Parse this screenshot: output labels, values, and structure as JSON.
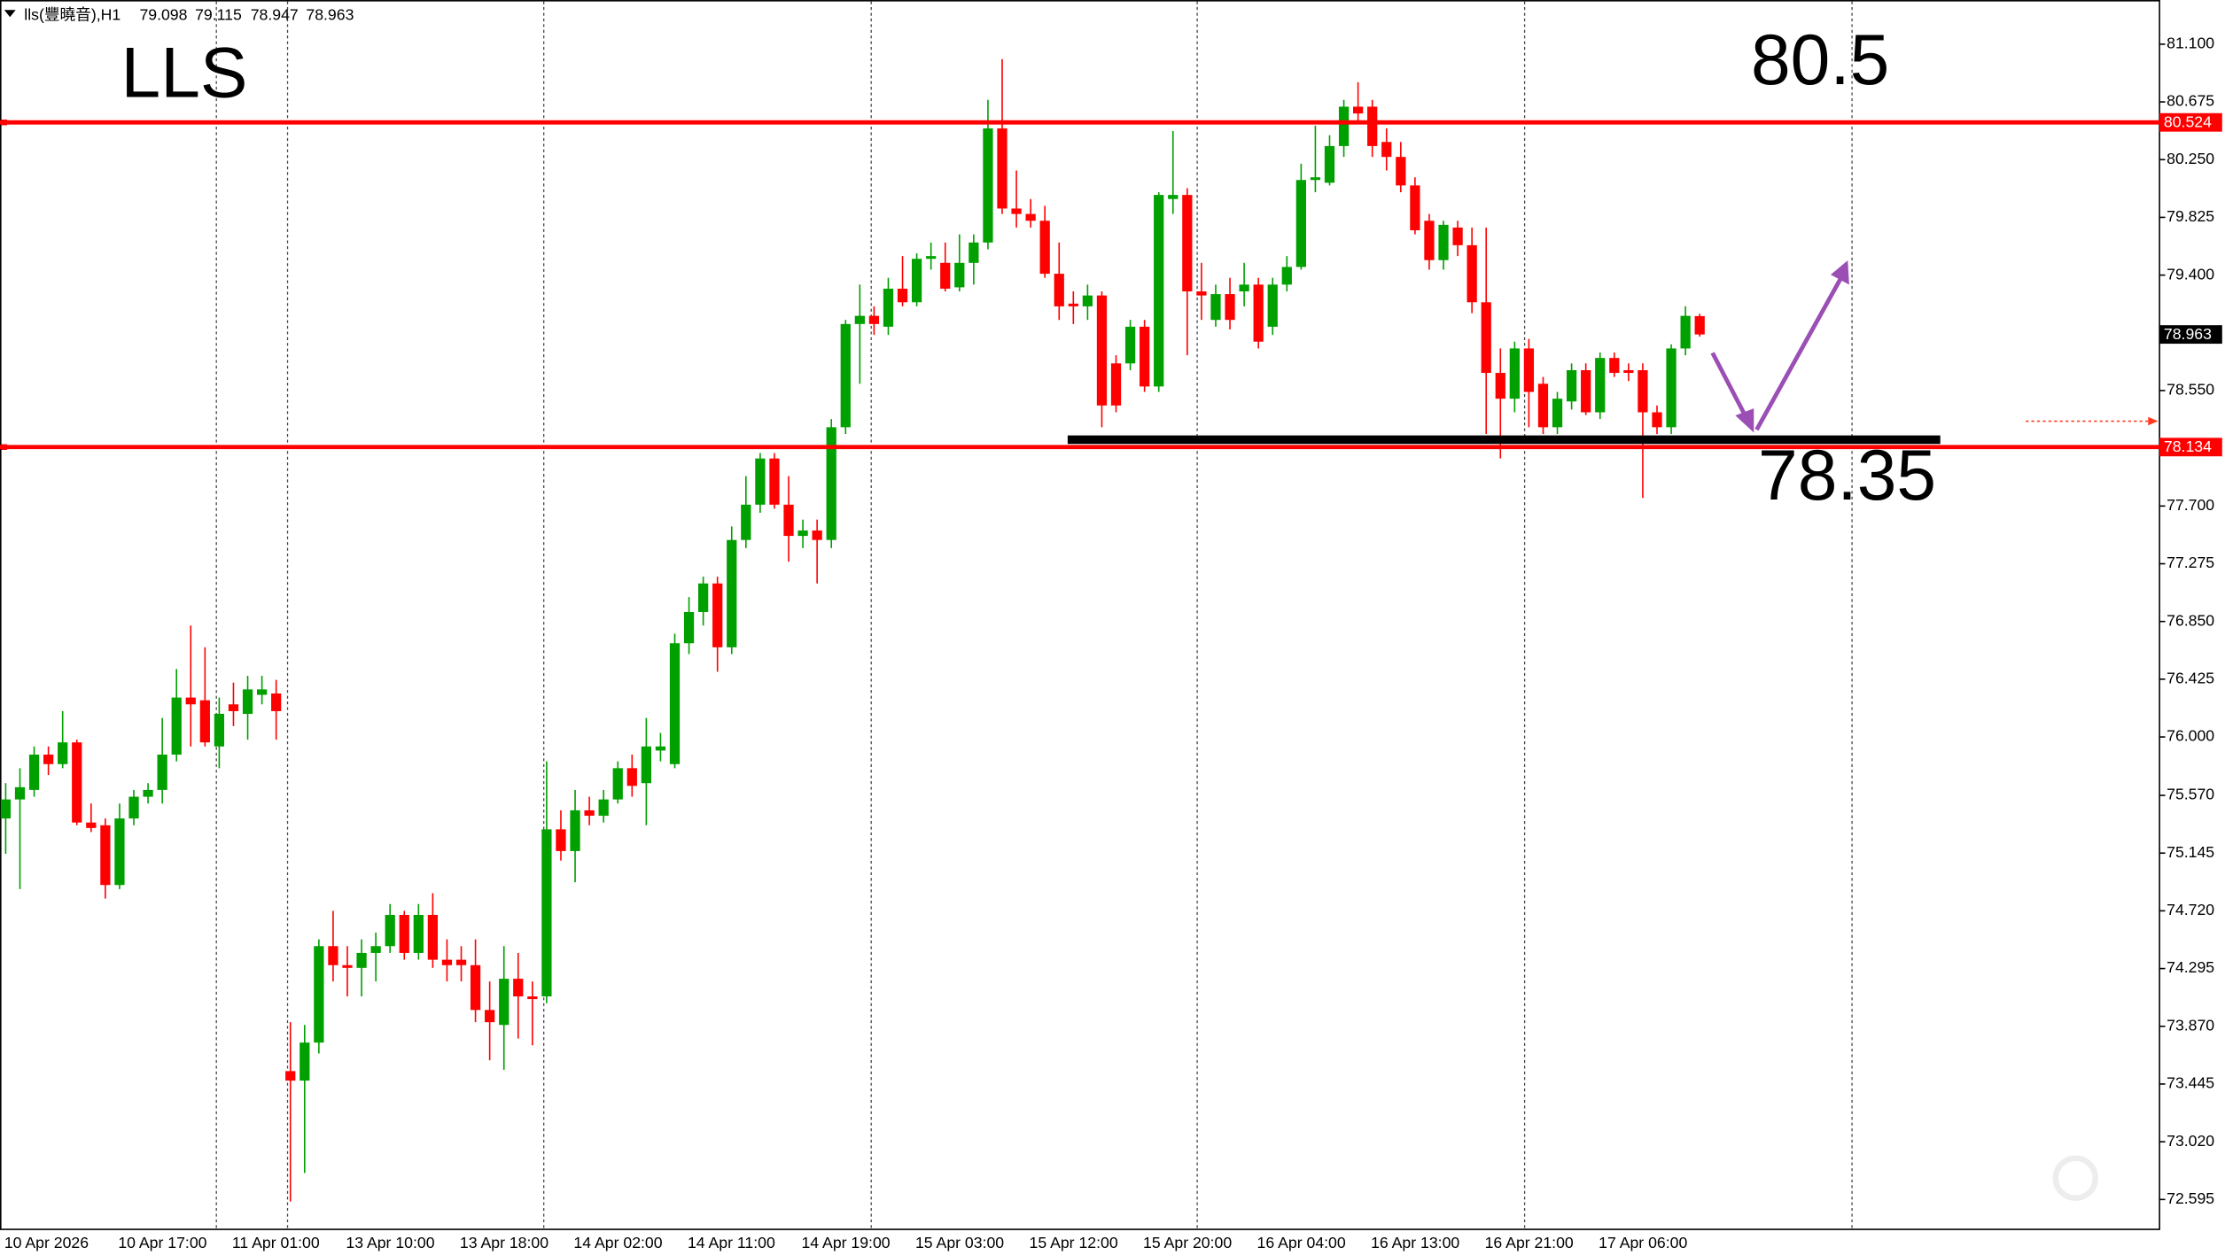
{
  "chart_data": {
    "type": "candlestick",
    "symbol": "lls(豐曉音),H1",
    "annotations": [
      "LLS",
      "80.5",
      "78.35"
    ],
    "up_color": "#00a000",
    "down_color": "#ff0000",
    "grid": false,
    "ylim": [
      72.375,
      81.425
    ],
    "yticks": [
      {
        "value": 81.1,
        "label": "81.100"
      },
      {
        "value": 80.675,
        "label": "80.675"
      },
      {
        "value": 80.25,
        "label": "80.250"
      },
      {
        "value": 79.825,
        "label": "79.825"
      },
      {
        "value": 79.4,
        "label": "79.400"
      },
      {
        "value": 78.55,
        "label": "78.550"
      },
      {
        "value": 77.7,
        "label": "77.700"
      },
      {
        "value": 77.275,
        "label": "77.275"
      },
      {
        "value": 76.85,
        "label": "76.850"
      },
      {
        "value": 76.425,
        "label": "76.425"
      },
      {
        "value": 76.0,
        "label": "76.000"
      },
      {
        "value": 75.57,
        "label": "75.570"
      },
      {
        "value": 75.145,
        "label": "75.145"
      },
      {
        "value": 74.72,
        "label": "74.720"
      },
      {
        "value": 74.295,
        "label": "74.295"
      },
      {
        "value": 73.87,
        "label": "73.870"
      },
      {
        "value": 73.445,
        "label": "73.445"
      },
      {
        "value": 73.02,
        "label": "73.020"
      },
      {
        "value": 72.595,
        "label": "72.595"
      }
    ],
    "hlines": [
      {
        "value": 80.524,
        "color": "#ff0000"
      },
      {
        "value": 78.134,
        "color": "#ff0000"
      }
    ],
    "categories": [
      "10 Apr 2026",
      null,
      null,
      null,
      null,
      null,
      null,
      null,
      "10 Apr 17:00",
      null,
      null,
      null,
      null,
      null,
      null,
      null,
      "11 Apr 01:00",
      null,
      null,
      null,
      null,
      null,
      null,
      null,
      "13 Apr 10:00",
      null,
      null,
      null,
      null,
      null,
      null,
      null,
      "13 Apr 18:00",
      null,
      null,
      null,
      null,
      null,
      null,
      null,
      "14 Apr 02:00",
      null,
      null,
      null,
      null,
      null,
      null,
      null,
      "14 Apr 11:00",
      null,
      null,
      null,
      null,
      null,
      null,
      null,
      "14 Apr 19:00",
      null,
      null,
      null,
      null,
      null,
      null,
      null,
      "15 Apr 03:00",
      null,
      null,
      null,
      null,
      null,
      null,
      null,
      "15 Apr 12:00",
      null,
      null,
      null,
      null,
      null,
      null,
      null,
      "15 Apr 20:00",
      null,
      null,
      null,
      null,
      null,
      null,
      null,
      "16 Apr 04:00",
      null,
      null,
      null,
      null,
      null,
      null,
      null,
      "16 Apr 13:00",
      null,
      null,
      null,
      null,
      null,
      null,
      null,
      "16 Apr 21:00",
      null,
      null,
      null,
      null,
      null,
      null,
      null,
      "17 Apr 06:00",
      null,
      null,
      null,
      null,
      null,
      null,
      null
    ],
    "open": [
      75.4,
      75.54,
      75.61,
      75.87,
      75.8,
      75.96,
      75.37,
      75.35,
      74.91,
      75.4,
      75.56,
      75.61,
      75.87,
      76.29,
      76.27,
      75.93,
      76.24,
      76.17,
      76.31,
      76.32,
      73.54,
      73.47,
      73.75,
      74.46,
      74.32,
      74.3,
      74.41,
      74.46,
      74.69,
      74.41,
      74.69,
      74.36,
      74.36,
      74.32,
      73.99,
      73.88,
      74.22,
      74.09,
      74.09,
      75.32,
      75.16,
      75.46,
      75.42,
      75.54,
      75.77,
      75.66,
      75.9,
      75.8,
      76.69,
      76.92,
      77.13,
      76.66,
      77.45,
      77.71,
      78.05,
      77.71,
      77.48,
      77.52,
      77.45,
      78.28,
      79.04,
      79.1,
      79.02,
      79.3,
      79.2,
      79.52,
      79.49,
      79.31,
      79.49,
      79.64,
      80.48,
      79.89,
      79.85,
      79.8,
      79.41,
      79.19,
      79.17,
      79.25,
      78.75,
      78.75,
      79.02,
      78.58,
      79.96,
      79.99,
      79.28,
      79.07,
      79.26,
      79.28,
      79.33,
      79.02,
      79.33,
      79.46,
      80.1,
      80.08,
      80.35,
      80.64,
      80.64,
      80.38,
      80.27,
      80.06,
      79.8,
      79.51,
      79.75,
      79.62,
      79.2,
      78.68,
      78.49,
      78.86,
      78.6,
      78.28,
      78.47,
      78.7,
      78.39,
      78.79,
      78.7,
      78.7,
      78.39,
      78.28,
      78.86,
      79.098
    ],
    "high": [
      75.66,
      75.77,
      75.93,
      75.93,
      76.19,
      75.98,
      75.51,
      75.4,
      75.51,
      75.61,
      75.66,
      76.14,
      76.5,
      76.82,
      76.66,
      76.29,
      76.4,
      76.45,
      76.45,
      76.42,
      73.9,
      73.88,
      74.51,
      74.72,
      74.46,
      74.51,
      74.56,
      74.77,
      74.72,
      74.77,
      74.85,
      74.51,
      74.46,
      74.51,
      74.2,
      74.46,
      74.41,
      74.2,
      75.82,
      75.46,
      75.61,
      75.56,
      75.61,
      75.82,
      75.87,
      76.14,
      76.03,
      76.76,
      77.03,
      77.18,
      77.18,
      77.55,
      77.92,
      78.09,
      78.09,
      77.92,
      77.6,
      77.6,
      78.34,
      79.07,
      79.33,
      79.17,
      79.38,
      79.54,
      79.56,
      79.64,
      79.64,
      79.7,
      79.7,
      80.69,
      80.99,
      80.17,
      79.96,
      79.91,
      79.64,
      79.28,
      79.33,
      79.28,
      78.81,
      79.07,
      79.07,
      80.01,
      80.46,
      80.04,
      79.49,
      79.33,
      79.38,
      79.49,
      79.38,
      79.38,
      79.54,
      80.22,
      80.5,
      80.43,
      80.69,
      80.82,
      80.69,
      80.48,
      80.38,
      80.12,
      79.85,
      79.8,
      79.8,
      79.75,
      79.75,
      78.86,
      78.91,
      78.93,
      78.65,
      78.54,
      78.75,
      78.75,
      78.83,
      78.83,
      78.75,
      78.75,
      78.44,
      78.89,
      79.17,
      79.115
    ],
    "low": [
      75.14,
      74.88,
      75.56,
      75.72,
      75.77,
      75.35,
      75.3,
      74.81,
      74.88,
      75.35,
      75.51,
      75.51,
      75.82,
      75.93,
      75.93,
      75.77,
      76.08,
      75.98,
      76.24,
      75.98,
      72.58,
      72.79,
      73.67,
      74.2,
      74.09,
      74.09,
      74.2,
      74.41,
      74.36,
      74.36,
      74.3,
      74.2,
      74.2,
      73.9,
      73.62,
      73.55,
      73.78,
      73.73,
      74.04,
      75.09,
      74.93,
      75.35,
      75.37,
      75.51,
      75.56,
      75.35,
      75.82,
      75.77,
      76.61,
      76.82,
      76.48,
      76.61,
      77.39,
      77.65,
      77.68,
      77.29,
      77.39,
      77.13,
      77.39,
      78.23,
      78.6,
      78.96,
      78.96,
      79.17,
      79.17,
      79.44,
      79.28,
      79.28,
      79.33,
      79.59,
      79.85,
      79.75,
      79.75,
      79.38,
      79.07,
      79.04,
      79.07,
      78.28,
      78.39,
      78.7,
      78.54,
      78.54,
      79.85,
      78.81,
      79.07,
      79.02,
      79.0,
      79.17,
      78.86,
      78.96,
      79.28,
      79.44,
      80.01,
      80.06,
      80.27,
      80.53,
      80.27,
      80.17,
      80.01,
      79.7,
      79.44,
      79.44,
      79.54,
      79.12,
      78.23,
      78.05,
      78.39,
      78.28,
      78.23,
      78.23,
      78.41,
      78.37,
      78.34,
      78.65,
      78.62,
      77.76,
      78.23,
      78.23,
      78.81,
      78.947
    ],
    "close": [
      75.54,
      75.63,
      75.87,
      75.8,
      75.96,
      75.37,
      75.33,
      74.91,
      75.4,
      75.56,
      75.61,
      75.87,
      76.29,
      76.24,
      75.96,
      76.17,
      76.19,
      76.35,
      76.35,
      76.19,
      73.47,
      73.75,
      74.46,
      74.32,
      74.3,
      74.41,
      74.46,
      74.69,
      74.41,
      74.69,
      74.36,
      74.32,
      74.32,
      73.99,
      73.9,
      74.22,
      74.09,
      74.07,
      75.32,
      75.16,
      75.46,
      75.42,
      75.54,
      75.77,
      75.64,
      75.93,
      75.93,
      76.69,
      76.92,
      77.13,
      76.66,
      77.45,
      77.71,
      78.05,
      77.71,
      77.48,
      77.52,
      77.45,
      78.28,
      79.04,
      79.1,
      79.04,
      79.3,
      79.2,
      79.52,
      79.54,
      79.3,
      79.49,
      79.64,
      80.48,
      79.89,
      79.85,
      79.8,
      79.41,
      79.17,
      79.17,
      79.25,
      78.44,
      78.44,
      79.02,
      78.58,
      79.99,
      79.99,
      79.28,
      79.25,
      79.26,
      79.07,
      79.33,
      78.91,
      79.33,
      79.46,
      80.1,
      80.12,
      80.35,
      80.64,
      80.59,
      80.35,
      80.27,
      80.06,
      79.73,
      79.51,
      79.77,
      79.62,
      79.2,
      78.68,
      78.49,
      78.86,
      78.54,
      78.28,
      78.49,
      78.7,
      78.39,
      78.79,
      78.68,
      78.68,
      78.39,
      78.28,
      78.86,
      79.1,
      78.963
    ]
  }
}
